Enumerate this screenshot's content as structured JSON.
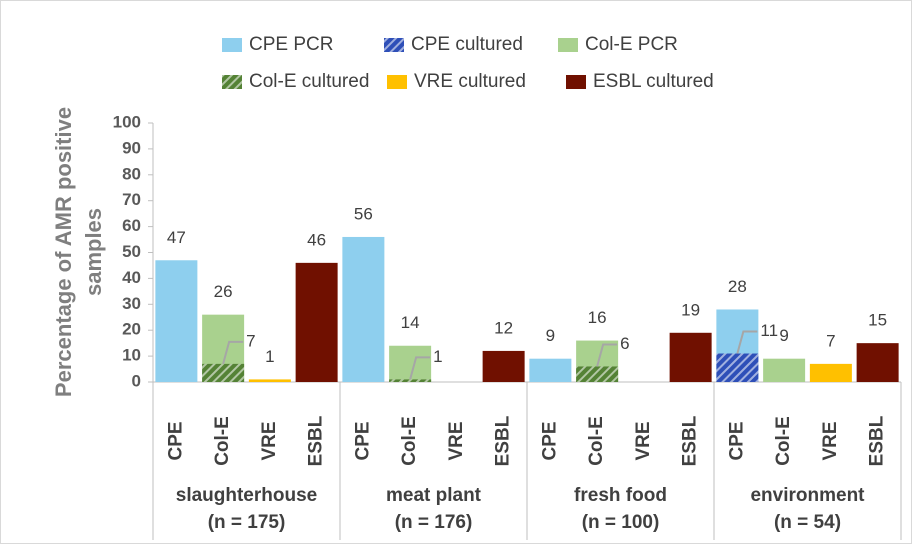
{
  "chart_data": {
    "type": "bar",
    "y_label": "Percentage of AMR positive samples",
    "categories": [
      "CPE",
      "Col-E",
      "VRE",
      "ESBL",
      "CPE",
      "Col-E",
      "VRE",
      "ESBL",
      "CPE",
      "Col-E",
      "VRE",
      "ESBL",
      "CPE",
      "Col-E",
      "VRE",
      "ESBL"
    ],
    "groups": [
      {
        "name": "slaughterhouse",
        "size": "(n = 175)"
      },
      {
        "name": "meat plant",
        "size": "(n = 176)"
      },
      {
        "name": "fresh food",
        "size": "(n = 100)"
      },
      {
        "name": "environment",
        "size": "(n = 54)"
      }
    ],
    "series": [
      {
        "name": "CPE PCR",
        "color": "#8ecfee",
        "pattern": "solid",
        "label_position": "top",
        "values": [
          47,
          null,
          null,
          null,
          56,
          null,
          null,
          null,
          9,
          null,
          null,
          null,
          28,
          null,
          null,
          null
        ]
      },
      {
        "name": "CPE cultured",
        "color": "#2e4fb8",
        "pattern": "hatch",
        "label_position": "right",
        "values": [
          null,
          null,
          null,
          null,
          null,
          null,
          null,
          null,
          null,
          null,
          null,
          null,
          11,
          null,
          null,
          null
        ]
      },
      {
        "name": "Col-E PCR",
        "color": "#a9d18e",
        "pattern": "solid",
        "label_position": "top",
        "values": [
          null,
          26,
          null,
          null,
          null,
          14,
          null,
          null,
          null,
          16,
          null,
          null,
          null,
          9,
          null,
          null
        ]
      },
      {
        "name": "Col-E cultured",
        "color": "#548235",
        "pattern": "hatch",
        "label_position": "right",
        "values": [
          null,
          7,
          null,
          null,
          null,
          1,
          null,
          null,
          null,
          6,
          null,
          null,
          null,
          null,
          null,
          null
        ]
      },
      {
        "name": "VRE cultured",
        "color": "#ffc000",
        "pattern": "solid",
        "label_position": "top",
        "values": [
          null,
          null,
          1,
          null,
          null,
          null,
          null,
          null,
          null,
          null,
          null,
          null,
          null,
          null,
          7,
          null
        ]
      },
      {
        "name": "ESBL cultured",
        "color": "#701000",
        "pattern": "solid",
        "label_position": "top",
        "values": [
          null,
          null,
          null,
          46,
          null,
          null,
          null,
          12,
          null,
          null,
          null,
          19,
          null,
          null,
          null,
          15
        ]
      }
    ],
    "ylim": [
      0,
      100
    ],
    "yticks": [
      0,
      10,
      20,
      30,
      40,
      50,
      60,
      70,
      80,
      90,
      100
    ],
    "legend": "top"
  }
}
